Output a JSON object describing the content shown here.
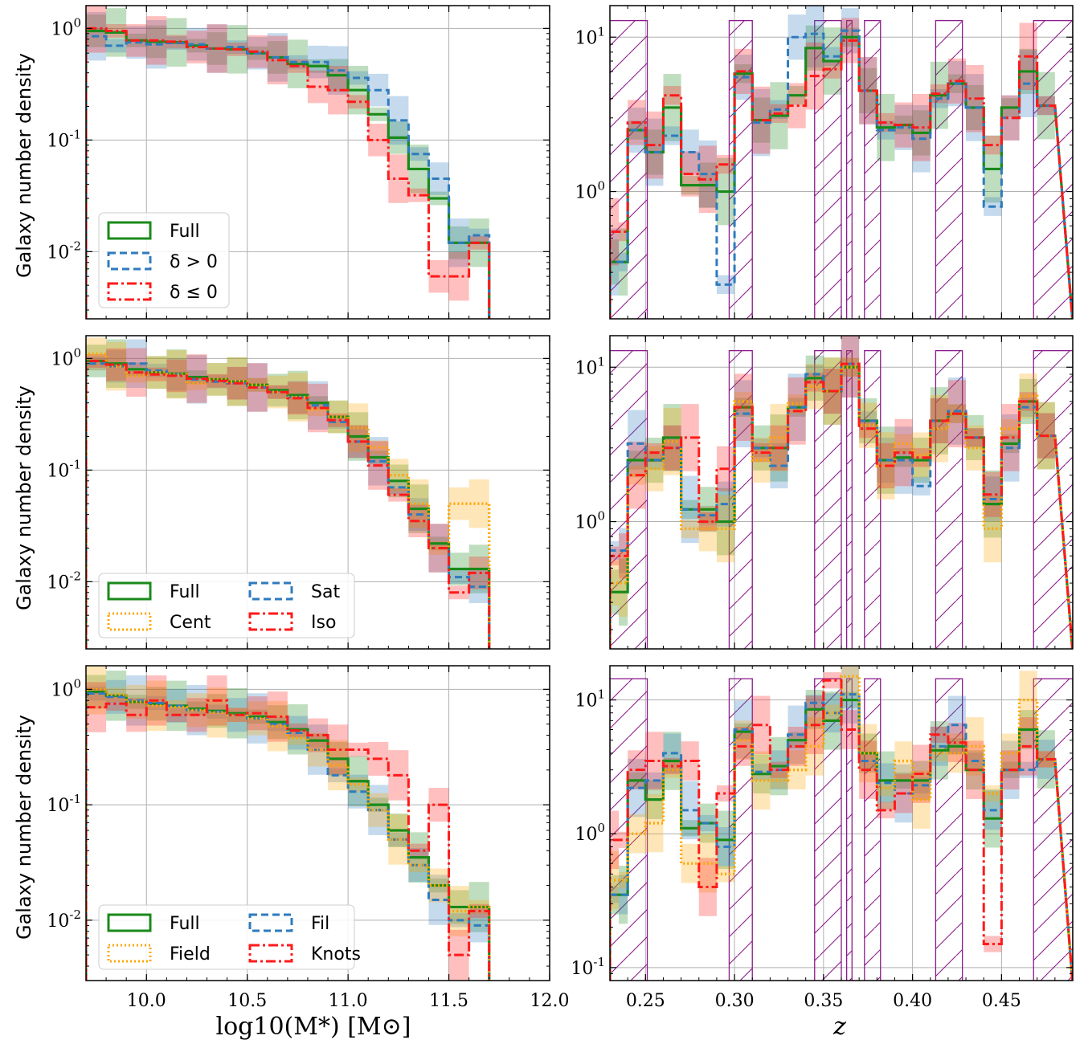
{
  "figure": {
    "ylabel": "Galaxy number density",
    "xlabel_mass": "log10(M*) [M⊙]",
    "xlabel_z": "z"
  },
  "colors": {
    "full": "#1a8a1a",
    "delta_pos": "#2f7bbd",
    "delta_neg": "#ff1a1a",
    "cent": "#ffa500",
    "sat": "#2f7bbd",
    "iso": "#ff1a1a",
    "field": "#ffa500",
    "fil": "#2f7bbd",
    "knots": "#ff1a1a",
    "mask": "#8b1a8b"
  },
  "chart_data": [
    {
      "type": "line",
      "panel": "mass-top",
      "xlim": [
        9.7,
        12.0
      ],
      "ylim": [
        0.0025,
        1.6
      ],
      "yscale": "log",
      "xticks": [
        "10.0",
        "10.5",
        "11.0",
        "11.5",
        "12.0"
      ],
      "yticks": [
        "10^0",
        "10^-1",
        "10^-2"
      ],
      "grid": true,
      "legend_location": "lower-left",
      "legend": [
        "Full",
        "δ > 0",
        "δ ≤ 0"
      ],
      "x_edges": [
        9.7,
        9.8,
        9.9,
        10.0,
        10.1,
        10.2,
        10.3,
        10.4,
        10.5,
        10.6,
        10.7,
        10.8,
        10.9,
        11.0,
        11.1,
        11.2,
        11.3,
        11.4,
        11.5,
        11.6,
        11.7
      ],
      "series": [
        {
          "name": "Full",
          "values": [
            0.95,
            0.92,
            0.78,
            0.76,
            0.75,
            0.7,
            0.66,
            0.65,
            0.6,
            0.55,
            0.48,
            0.46,
            0.38,
            0.28,
            0.17,
            0.105,
            0.055,
            0.03,
            0.012,
            0.012
          ]
        },
        {
          "name": "δ > 0",
          "values": [
            0.85,
            0.7,
            0.75,
            0.72,
            0.74,
            0.72,
            0.66,
            0.68,
            0.6,
            0.55,
            0.5,
            0.5,
            0.42,
            0.36,
            0.28,
            0.15,
            0.075,
            0.045,
            0.012,
            0.014
          ]
        },
        {
          "name": "δ ≤ 0",
          "values": [
            1.0,
            0.95,
            0.78,
            0.78,
            0.76,
            0.68,
            0.66,
            0.65,
            0.62,
            0.52,
            0.46,
            0.3,
            0.28,
            0.22,
            0.1,
            0.045,
            0.032,
            0.006,
            0.006,
            0.012
          ]
        }
      ]
    },
    {
      "type": "line",
      "panel": "mass-middle",
      "xlim": [
        9.7,
        12.0
      ],
      "ylim": [
        0.0025,
        1.6
      ],
      "yscale": "log",
      "xticks": [
        "10.0",
        "10.5",
        "11.0",
        "11.5",
        "12.0"
      ],
      "yticks": [
        "10^0",
        "10^-1",
        "10^-2"
      ],
      "grid": true,
      "legend_location": "lower-left",
      "legend": [
        "Full",
        "Sat",
        "Cent",
        "Iso"
      ],
      "x_edges": [
        9.7,
        9.8,
        9.9,
        10.0,
        10.1,
        10.2,
        10.3,
        10.4,
        10.5,
        10.6,
        10.7,
        10.8,
        10.9,
        11.0,
        11.1,
        11.2,
        11.3,
        11.4,
        11.5,
        11.6,
        11.7
      ],
      "series": [
        {
          "name": "Full",
          "values": [
            0.95,
            0.9,
            0.8,
            0.75,
            0.73,
            0.68,
            0.65,
            0.62,
            0.58,
            0.52,
            0.47,
            0.4,
            0.3,
            0.2,
            0.13,
            0.08,
            0.045,
            0.022,
            0.013,
            0.013
          ]
        },
        {
          "name": "Sat",
          "values": [
            0.9,
            0.85,
            0.9,
            0.78,
            0.72,
            0.65,
            0.62,
            0.6,
            0.55,
            0.5,
            0.45,
            0.38,
            0.27,
            0.18,
            0.12,
            0.07,
            0.04,
            0.02,
            0.011,
            0.009
          ]
        },
        {
          "name": "Cent",
          "values": [
            1.1,
            0.85,
            0.7,
            0.75,
            0.72,
            0.6,
            0.65,
            0.62,
            0.58,
            0.5,
            0.45,
            0.35,
            0.3,
            0.24,
            0.16,
            0.09,
            0.05,
            0.02,
            0.05,
            0.05
          ]
        },
        {
          "name": "Iso",
          "values": [
            0.95,
            0.88,
            0.75,
            0.72,
            0.7,
            0.66,
            0.63,
            0.6,
            0.55,
            0.5,
            0.44,
            0.36,
            0.28,
            0.18,
            0.11,
            0.06,
            0.035,
            0.02,
            0.008,
            0.012
          ]
        }
      ]
    },
    {
      "type": "line",
      "panel": "mass-bottom",
      "xlim": [
        9.7,
        12.0
      ],
      "ylim": [
        0.003,
        1.6
      ],
      "yscale": "log",
      "xticks": [
        "10.0",
        "10.5",
        "11.0",
        "11.5",
        "12.0"
      ],
      "xlabel": "log10(M*) [M⊙]",
      "yticks": [
        "10^0",
        "10^-1",
        "10^-2"
      ],
      "grid": true,
      "legend_location": "lower-left",
      "legend": [
        "Full",
        "Fil",
        "Field",
        "Knots"
      ],
      "x_edges": [
        9.7,
        9.8,
        9.9,
        10.0,
        10.1,
        10.2,
        10.3,
        10.4,
        10.5,
        10.6,
        10.7,
        10.8,
        10.9,
        11.0,
        11.1,
        11.2,
        11.3,
        11.4,
        11.5,
        11.6,
        11.7
      ],
      "series": [
        {
          "name": "Full",
          "values": [
            0.95,
            0.88,
            0.78,
            0.75,
            0.72,
            0.68,
            0.65,
            0.62,
            0.58,
            0.52,
            0.45,
            0.36,
            0.25,
            0.16,
            0.1,
            0.06,
            0.035,
            0.02,
            0.013,
            0.013
          ]
        },
        {
          "name": "Fil",
          "values": [
            0.92,
            0.86,
            0.8,
            0.76,
            0.72,
            0.66,
            0.64,
            0.6,
            0.56,
            0.5,
            0.42,
            0.3,
            0.18,
            0.13,
            0.09,
            0.05,
            0.03,
            0.015,
            0.01,
            0.009
          ]
        },
        {
          "name": "Field",
          "values": [
            1.0,
            0.9,
            0.78,
            0.72,
            0.7,
            0.66,
            0.63,
            0.6,
            0.56,
            0.48,
            0.38,
            0.3,
            0.22,
            0.15,
            0.09,
            0.05,
            0.03,
            0.02,
            0.012,
            0.013
          ]
        },
        {
          "name": "Knots",
          "values": [
            0.7,
            0.75,
            0.6,
            0.8,
            0.6,
            0.6,
            0.8,
            0.6,
            0.62,
            0.58,
            0.44,
            0.4,
            0.3,
            0.3,
            0.25,
            0.18,
            0.04,
            0.1,
            0.005,
            0.012
          ]
        }
      ]
    },
    {
      "type": "line",
      "panel": "z-top",
      "xlim": [
        0.23,
        0.49
      ],
      "ylim": [
        0.15,
        16
      ],
      "yscale": "log",
      "xticks": [
        "0.25",
        "0.30",
        "0.35",
        "0.40",
        "0.45"
      ],
      "yticks": [
        "10^1",
        "10^0"
      ],
      "grid": true,
      "masked_z_ranges": [
        [
          0.23,
          0.251
        ],
        [
          0.297,
          0.31
        ],
        [
          0.345,
          0.36
        ],
        [
          0.363,
          0.366
        ],
        [
          0.373,
          0.382
        ],
        [
          0.413,
          0.428
        ],
        [
          0.468,
          0.49
        ]
      ],
      "z_edges": [
        0.23,
        0.235,
        0.24,
        0.25,
        0.26,
        0.27,
        0.28,
        0.29,
        0.3,
        0.31,
        0.32,
        0.33,
        0.34,
        0.35,
        0.36,
        0.37,
        0.38,
        0.39,
        0.4,
        0.41,
        0.42,
        0.43,
        0.44,
        0.45,
        0.46,
        0.47,
        0.48,
        0.49
      ],
      "series": [
        {
          "name": "Full",
          "values": [
            0.35,
            0.35,
            2.5,
            1.8,
            3.5,
            1.1,
            1.1,
            1.0,
            5.8,
            2.9,
            3.1,
            4.2,
            8.5,
            7.0,
            10.0,
            4.5,
            2.6,
            2.7,
            2.4,
            4.2,
            5.0,
            3.5,
            1.4,
            3.5,
            6.0,
            3.6
          ]
        },
        {
          "name": "δ > 0",
          "values": [
            0.35,
            0.35,
            2.5,
            1.8,
            2.3,
            1.8,
            1.3,
            0.25,
            5.5,
            2.8,
            3.4,
            10.0,
            10.5,
            7.5,
            11.0,
            4.5,
            2.5,
            2.6,
            2.2,
            4.0,
            5.0,
            3.5,
            0.8,
            3.0,
            5.0,
            3.6
          ]
        },
        {
          "name": "δ ≤ 0",
          "values": [
            0.55,
            0.55,
            2.8,
            2.0,
            4.2,
            1.3,
            1.2,
            1.5,
            6.0,
            2.9,
            3.2,
            3.6,
            5.6,
            6.2,
            9.5,
            4.5,
            2.8,
            2.7,
            2.6,
            4.3,
            5.2,
            4.0,
            2.0,
            3.0,
            7.5,
            3.6
          ]
        }
      ]
    },
    {
      "type": "line",
      "panel": "z-middle",
      "xlim": [
        0.23,
        0.49
      ],
      "ylim": [
        0.15,
        16
      ],
      "yscale": "log",
      "xticks": [
        "0.25",
        "0.30",
        "0.35",
        "0.40",
        "0.45"
      ],
      "yticks": [
        "10^1",
        "10^0"
      ],
      "grid": true,
      "masked_z_ranges": [
        [
          0.23,
          0.251
        ],
        [
          0.297,
          0.31
        ],
        [
          0.345,
          0.36
        ],
        [
          0.363,
          0.366
        ],
        [
          0.373,
          0.382
        ],
        [
          0.413,
          0.428
        ],
        [
          0.468,
          0.49
        ]
      ],
      "z_edges": [
        0.23,
        0.235,
        0.24,
        0.25,
        0.26,
        0.27,
        0.28,
        0.29,
        0.3,
        0.31,
        0.32,
        0.33,
        0.34,
        0.35,
        0.36,
        0.37,
        0.38,
        0.39,
        0.4,
        0.41,
        0.42,
        0.43,
        0.44,
        0.45,
        0.46,
        0.47,
        0.48,
        0.49
      ],
      "series": [
        {
          "name": "Full",
          "values": [
            0.35,
            0.35,
            2.5,
            2.5,
            3.5,
            1.2,
            1.2,
            1.0,
            5.5,
            3.0,
            3.0,
            5.5,
            8.5,
            7.0,
            10.0,
            4.5,
            2.5,
            2.6,
            2.5,
            4.5,
            5.0,
            3.5,
            1.3,
            3.2,
            6.0,
            3.6
          ]
        },
        {
          "name": "Sat",
          "values": [
            0.65,
            0.65,
            3.2,
            2.5,
            3.0,
            1.2,
            1.1,
            1.3,
            5.0,
            3.0,
            2.3,
            5.5,
            9.0,
            7.0,
            10.5,
            4.5,
            2.5,
            2.5,
            1.7,
            4.5,
            5.2,
            3.5,
            1.4,
            3.0,
            5.5,
            3.6
          ]
        },
        {
          "name": "Cent",
          "values": [
            0.4,
            0.4,
            2.0,
            2.2,
            3.3,
            0.9,
            0.9,
            0.9,
            6.0,
            2.5,
            3.5,
            5.8,
            7.5,
            7.0,
            10.0,
            4.2,
            2.3,
            3.2,
            2.7,
            4.0,
            5.0,
            3.0,
            0.9,
            4.0,
            6.5,
            3.6
          ]
        },
        {
          "name": "Iso",
          "values": [
            0.6,
            0.6,
            2.0,
            2.8,
            3.0,
            3.5,
            1.0,
            2.2,
            5.5,
            2.8,
            3.0,
            5.2,
            8.0,
            7.0,
            10.5,
            4.0,
            2.3,
            2.8,
            2.6,
            4.5,
            5.0,
            3.5,
            1.5,
            3.5,
            6.0,
            3.6
          ]
        }
      ]
    },
    {
      "type": "line",
      "panel": "z-bottom",
      "xlim": [
        0.23,
        0.49
      ],
      "ylim": [
        0.08,
        18
      ],
      "yscale": "log",
      "xticks": [
        "0.25",
        "0.30",
        "0.35",
        "0.40",
        "0.45"
      ],
      "xlabel": "z",
      "yticks": [
        "10^1",
        "10^0",
        "10^-1"
      ],
      "grid": true,
      "masked_z_ranges": [
        [
          0.23,
          0.251
        ],
        [
          0.297,
          0.31
        ],
        [
          0.345,
          0.36
        ],
        [
          0.363,
          0.366
        ],
        [
          0.373,
          0.382
        ],
        [
          0.413,
          0.428
        ],
        [
          0.468,
          0.49
        ]
      ],
      "z_edges": [
        0.23,
        0.235,
        0.24,
        0.25,
        0.26,
        0.27,
        0.28,
        0.29,
        0.3,
        0.31,
        0.32,
        0.33,
        0.34,
        0.35,
        0.36,
        0.37,
        0.38,
        0.39,
        0.4,
        0.41,
        0.42,
        0.43,
        0.44,
        0.45,
        0.46,
        0.47,
        0.48,
        0.49
      ],
      "series": [
        {
          "name": "Full",
          "values": [
            0.35,
            0.35,
            2.5,
            1.8,
            3.5,
            1.1,
            1.2,
            0.9,
            5.8,
            2.8,
            3.2,
            5.0,
            8.5,
            7.0,
            10.0,
            4.0,
            2.5,
            2.5,
            2.5,
            4.2,
            4.5,
            3.0,
            1.3,
            3.0,
            6.0,
            3.6
          ]
        },
        {
          "name": "Fil",
          "values": [
            0.35,
            0.35,
            2.2,
            2.5,
            4.0,
            1.5,
            1.2,
            0.8,
            6.0,
            2.9,
            3.0,
            5.5,
            9.5,
            8.0,
            11.0,
            3.5,
            2.4,
            2.0,
            2.3,
            4.5,
            6.5,
            3.5,
            1.5,
            3.0,
            3.0,
            3.6
          ]
        },
        {
          "name": "Field",
          "values": [
            0.45,
            0.45,
            1.0,
            1.2,
            3.0,
            0.6,
            0.6,
            0.5,
            5.0,
            2.5,
            2.5,
            3.0,
            4.5,
            8.0,
            15.0,
            4.0,
            2.2,
            3.5,
            1.8,
            4.0,
            4.0,
            4.5,
            2.0,
            4.0,
            10.0,
            3.6
          ]
        },
        {
          "name": "Knots",
          "values": [
            0.9,
            0.9,
            3.0,
            3.5,
            3.2,
            3.5,
            0.4,
            2.0,
            4.5,
            6.5,
            3.0,
            4.5,
            6.5,
            14.0,
            6.0,
            3.0,
            1.5,
            2.0,
            2.8,
            5.5,
            4.8,
            3.0,
            0.15,
            3.0,
            4.5,
            3.6
          ]
        }
      ]
    }
  ]
}
